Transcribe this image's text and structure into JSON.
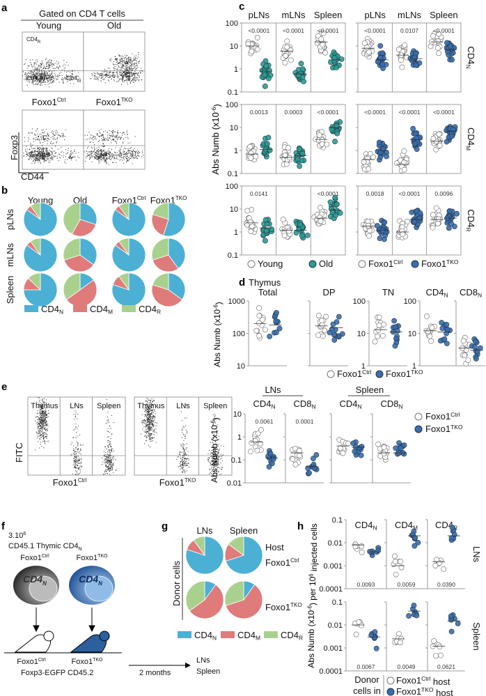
{
  "colors": {
    "cd4n": "#4cb0d4",
    "cd4m": "#df7b7b",
    "cd4r": "#a9d18e",
    "old": "#2a9d92",
    "tko": "#3a6eae",
    "ctrl": "#ffffff"
  },
  "panel_a": {
    "label": "a",
    "title": "Gated on CD4 T cells",
    "top": [
      "Young",
      "Old"
    ],
    "bottom": [
      {
        "base": "Foxo1",
        "sup": "Ctrl"
      },
      {
        "base": "Foxo1",
        "sup": "TKO"
      }
    ],
    "gates": {
      "r": {
        "base": "CD4",
        "sub": "R"
      },
      "n": {
        "base": "CD4",
        "sub": "N"
      },
      "m": {
        "base": "CD4",
        "sub": "M"
      }
    },
    "yaxis": "Foxp3",
    "xaxis": "CD44"
  },
  "panel_b": {
    "label": "b",
    "cols": [
      "Young",
      "Old",
      {
        "base": "Foxo1",
        "sup": "Ctrl"
      },
      {
        "base": "Foxo1",
        "sup": "TKO"
      }
    ],
    "rows": [
      "pLNs",
      "mLNs",
      "Spleen"
    ],
    "fractions": [
      [
        [
          0.85,
          0.05,
          0.1
        ],
        [
          0.3,
          0.28,
          0.42
        ],
        [
          0.85,
          0.05,
          0.1
        ],
        [
          0.55,
          0.25,
          0.2
        ]
      ],
      [
        [
          0.85,
          0.05,
          0.1
        ],
        [
          0.35,
          0.35,
          0.3
        ],
        [
          0.85,
          0.05,
          0.1
        ],
        [
          0.4,
          0.3,
          0.3
        ]
      ],
      [
        [
          0.75,
          0.12,
          0.13
        ],
        [
          0.15,
          0.5,
          0.35
        ],
        [
          0.8,
          0.1,
          0.1
        ],
        [
          0.35,
          0.45,
          0.2
        ]
      ]
    ],
    "legend": [
      {
        "base": "CD4",
        "sub": "N"
      },
      {
        "base": "CD4",
        "sub": "M"
      },
      {
        "base": "CD4",
        "sub": "R"
      }
    ]
  },
  "panel_c": {
    "label": "c",
    "columns": [
      "pLNs",
      "mLNs",
      "Spleen"
    ],
    "ylabel": "Abs Numb (x10",
    "ylabel_sup": "-6",
    "ylabel_end": ")",
    "ylim": [
      0.1,
      100
    ],
    "ticks": [
      "0.1",
      "1",
      "10",
      "100"
    ],
    "rows": [
      {
        "base": "CD4",
        "sub": "N",
        "aging": {
          "medians": [
            [
              10,
              0.8
            ],
            [
              6,
              0.6
            ],
            [
              15,
              2.5
            ]
          ],
          "p": [
            "<0.0001",
            "<0.0001",
            "<0.0001"
          ]
        },
        "foxo": {
          "medians": [
            [
              8,
              2.5
            ],
            [
              4,
              2.8
            ],
            [
              15,
              7
            ]
          ],
          "p": [
            "<0.0001",
            "0.0107",
            "<0.0001"
          ]
        }
      },
      {
        "base": "CD4",
        "sub": "M",
        "aging": {
          "medians": [
            [
              0.7,
              1.1
            ],
            [
              0.5,
              0.6
            ],
            [
              3,
              10
            ]
          ],
          "p": [
            "0.0013",
            "0.0003",
            "<0.0001"
          ]
        },
        "foxo": {
          "medians": [
            [
              0.4,
              1
            ],
            [
              0.25,
              3
            ],
            [
              2.5,
              7
            ]
          ],
          "p": [
            "<0.0001",
            "<0.0001",
            "<0.0001"
          ]
        }
      },
      {
        "base": "CD4",
        "sub": "R",
        "aging": {
          "medians": [
            [
              2.5,
              1.5
            ],
            [
              1.2,
              1.2
            ],
            [
              4,
              9
            ]
          ],
          "p": [
            "0.0141",
            "",
            "<0.0001"
          ]
        },
        "foxo": {
          "medians": [
            [
              1.8,
              1.2
            ],
            [
              1,
              3.5
            ],
            [
              3.5,
              4
            ]
          ],
          "p": [
            "0.0018",
            "<0.0001",
            "0.0096"
          ]
        }
      }
    ],
    "legend": {
      "young": "Young",
      "old": "Old",
      "ctrl": {
        "base": "Foxo1",
        "sup": "Ctrl"
      },
      "tko": {
        "base": "Foxo1",
        "sup": "TKO"
      }
    }
  },
  "panel_d": {
    "label": "d",
    "title": "Thymus",
    "ylabel": "Abs Numb (x10",
    "ylabel_sup": "-6",
    "ylabel_end": ")",
    "plots": [
      {
        "name": "Total",
        "sub": "",
        "ticks": [
          "10",
          "100",
          "1000"
        ],
        "ylim": [
          10,
          1000
        ],
        "medians": [
          200,
          180
        ]
      },
      {
        "name": "DP",
        "sub": "",
        "ticks": [],
        "ylim": [
          10,
          1000
        ],
        "medians": [
          170,
          150
        ]
      },
      {
        "name": "TN",
        "sub": "",
        "ticks": [
          "1",
          "10",
          "100"
        ],
        "ylim": [
          1,
          100
        ],
        "medians": [
          13,
          11
        ]
      },
      {
        "name": "CD4",
        "sub": "N",
        "ticks": [
          "1",
          "10",
          "100"
        ],
        "ylim": [
          1,
          100
        ],
        "medians": [
          12,
          11
        ]
      },
      {
        "name": "CD8",
        "sub": "N",
        "ticks": [],
        "ylim": [
          1,
          100
        ],
        "medians": [
          3.5,
          3
        ]
      }
    ],
    "legend": {
      "ctrl": {
        "base": "Foxo1",
        "sup": "Ctrl"
      },
      "tko": {
        "base": "Foxo1",
        "sup": "TKO"
      }
    }
  },
  "panel_e": {
    "label": "e",
    "lanes": [
      "Thymus",
      "LNs",
      "Spleen"
    ],
    "genotypes": [
      {
        "base": "Foxo1",
        "sup": "Ctrl"
      },
      {
        "base": "Foxo1",
        "sup": "TKO"
      }
    ],
    "yaxis": "FITC",
    "groups": [
      "LNs",
      "Spleen"
    ],
    "plots": [
      {
        "name": "CD4",
        "sub": "N",
        "medians": [
          0.6,
          0.12
        ],
        "p": "0.0061"
      },
      {
        "name": "CD8",
        "sub": "N",
        "medians": [
          0.2,
          0.05
        ],
        "p": "0.0001"
      },
      {
        "name": "CD4",
        "sub": "N",
        "medians": [
          0.4,
          0.35
        ],
        "p": ""
      },
      {
        "name": "CD8",
        "sub": "N",
        "medians": [
          0.2,
          0.2
        ],
        "p": ""
      }
    ],
    "ylim": [
      0.01,
      10
    ],
    "ticks": [
      "0.01",
      "0.1",
      "1",
      "10"
    ],
    "ylabel": "Abs Numb (x10",
    "ylabel_sup": "-6",
    "ylabel_end": ")",
    "legend": {
      "ctrl": {
        "base": "Foxo1",
        "sup": "Ctrl"
      },
      "tko": {
        "base": "Foxo1",
        "sup": "TKO"
      }
    }
  },
  "panel_f": {
    "label": "f",
    "count": "3.10",
    "count_sup": "6",
    "cells": "CD45.1 Thymic CD4",
    "cells_sub": "N",
    "donors": [
      {
        "base": "Foxo1",
        "sup": "Ctrl"
      },
      {
        "base": "Foxo1",
        "sup": "TKO"
      }
    ],
    "cell_label": "CD4",
    "cell_label_sub": "N",
    "hosts": [
      {
        "base": "Foxo1",
        "sup": "Ctrl"
      },
      {
        "base": "Foxo1",
        "sup": "TKO"
      }
    ],
    "host_strain": "Foxp3-EGFP CD45.2",
    "duration": "2 months",
    "organs": [
      "LNs",
      "Spleen"
    ]
  },
  "panel_g": {
    "label": "g",
    "cols": [
      "LNs",
      "Spleen"
    ],
    "host_title": "Host",
    "hosts": [
      {
        "base": "Foxo1",
        "sup": "Ctrl"
      },
      {
        "base": "Foxo1",
        "sup": "TKO"
      }
    ],
    "side": "Donor cells",
    "fractions": [
      [
        [
          0.8,
          0.1,
          0.1
        ],
        [
          0.7,
          0.15,
          0.15
        ]
      ],
      [
        [
          0.1,
          0.55,
          0.35
        ],
        [
          0.1,
          0.6,
          0.3
        ]
      ]
    ],
    "legend": [
      {
        "base": "CD4",
        "sub": "N"
      },
      {
        "base": "CD4",
        "sub": "M"
      },
      {
        "base": "CD4",
        "sub": "R"
      }
    ]
  },
  "panel_h": {
    "label": "h",
    "cols": [
      {
        "base": "CD4",
        "sub": "N"
      },
      {
        "base": "CD4",
        "sub": "M"
      },
      {
        "base": "CD4",
        "sub": "R"
      }
    ],
    "rows": [
      "LNs",
      "Spleen"
    ],
    "ylim": [
      0.0001,
      0.1
    ],
    "ticks": [
      "0.0001",
      "0.001",
      "0.01",
      "0.1"
    ],
    "ylabel": "Abs Numb (x10",
    "ylabel_sup": "-6",
    "ylabel_mid": ") per 10",
    "ylabel_sup2": "6",
    "ylabel_end": " injected cells",
    "medians": [
      [
        [
          0.008,
          0.004
        ],
        [
          0.001,
          0.02
        ],
        [
          0.0015,
          0.02
        ]
      ],
      [
        [
          0.01,
          0.003
        ],
        [
          0.0025,
          0.04
        ],
        [
          0.0012,
          0.015
        ]
      ]
    ],
    "p": [
      [
        "0.0093",
        "0.0059",
        "0.0390"
      ],
      [
        "0.0067",
        "0.0049",
        "0.0621"
      ]
    ],
    "legend": {
      "title1": "Donor",
      "title2": "cells in",
      "ctrl": {
        "base": "Foxo1",
        "sup": "Ctrl",
        "end": " host"
      },
      "tko": {
        "base": "Foxo1",
        "sup": "TKO",
        "end": " host"
      }
    }
  }
}
